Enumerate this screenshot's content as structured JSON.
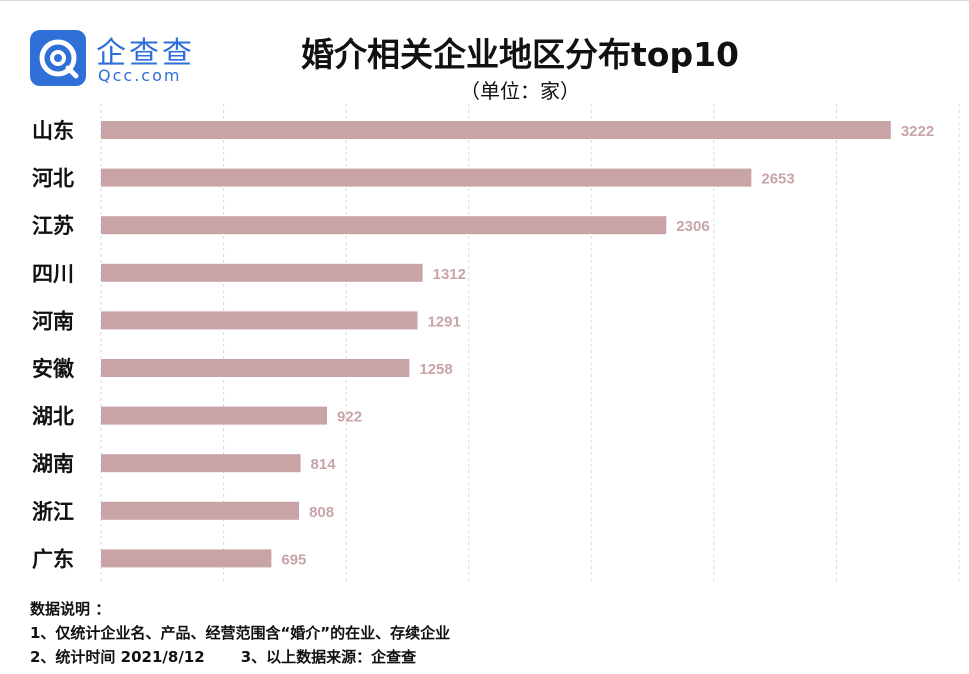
{
  "brand": {
    "name_cn": "企查查",
    "name_en": "Qcc.com",
    "icon": "qcc-logo-icon",
    "color": "#2f6fd8"
  },
  "colors": {
    "bar": "#c9a4a6",
    "value_label": "#c9a4a6",
    "grid": "#d9d9d9"
  },
  "chart_data": {
    "type": "bar",
    "orientation": "horizontal",
    "title": "婚介相关企业地区分布top10",
    "subtitle": "（单位：家）",
    "categories": [
      "山东",
      "河北",
      "江苏",
      "四川",
      "河南",
      "安徽",
      "湖北",
      "湖南",
      "浙江",
      "广东"
    ],
    "values": [
      3222,
      2653,
      2306,
      1312,
      1291,
      1258,
      922,
      814,
      808,
      695
    ],
    "xlim": [
      0,
      3500
    ],
    "grid": true,
    "xlabel": "",
    "ylabel": ""
  },
  "notes": {
    "heading": "数据说明 ：",
    "line1": "1、仅统计企业名、产品、经营范围含“婚介”的在业、存续企业",
    "line2a": "2、统计时间 2021/8/12",
    "line2b": "3、以上数据来源：企查查"
  }
}
